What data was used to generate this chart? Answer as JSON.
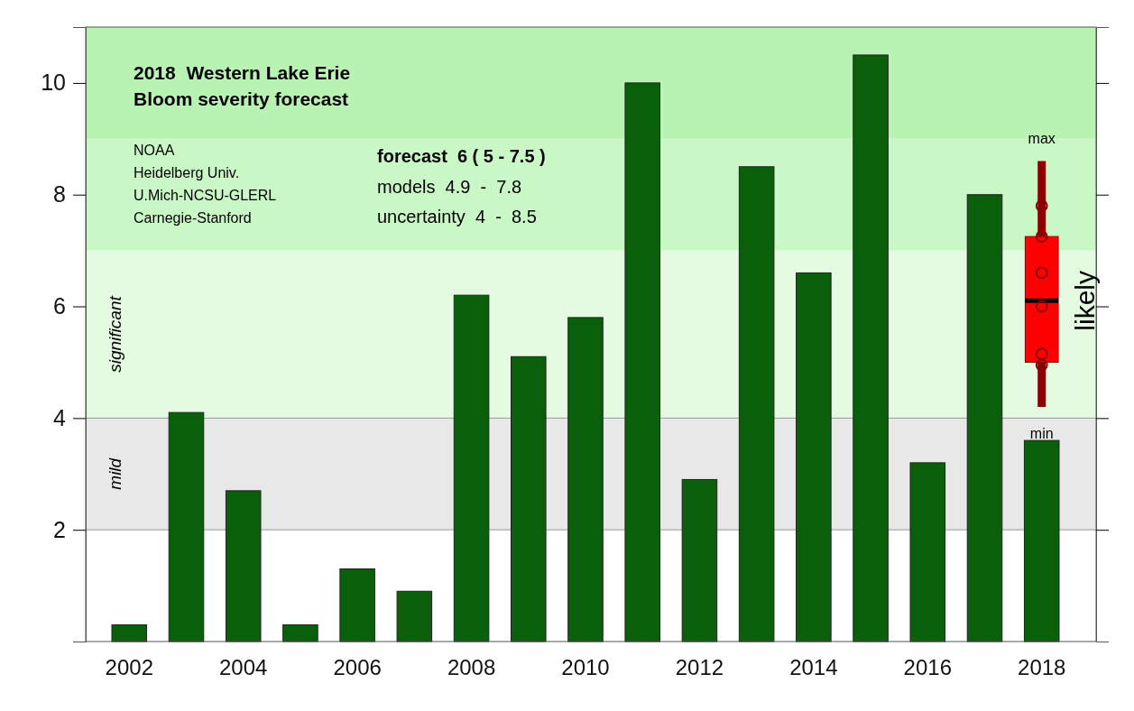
{
  "chart_data": {
    "type": "bar",
    "title": "2018  Western Lake Erie\nBloom severity forecast",
    "categories": [
      "2002",
      null,
      "2004",
      null,
      "2006",
      null,
      "2008",
      null,
      "2010",
      null,
      "2012",
      null,
      "2014",
      null,
      "2016",
      null,
      "2018"
    ],
    "series": [
      {
        "color": "#0a5f0a",
        "values": [
          0.3,
          4.1,
          2.7,
          0.3,
          1.3,
          0.9,
          6.2,
          5.1,
          5.8,
          10.0,
          2.9,
          8.5,
          6.6,
          10.5,
          3.2,
          8.0,
          3.6
        ]
      },
      {
        "type": "box",
        "color": "#ff0000",
        "boxes": [
          null,
          null,
          null,
          null,
          null,
          null,
          null,
          null,
          null,
          null,
          null,
          null,
          null,
          null,
          null,
          null,
          {
            "low": 4.2,
            "q1": 5.0,
            "median": 6.1,
            "q3": 7.25,
            "high": 8.6
          }
        ]
      },
      {
        "type": "scatter",
        "color": "#8b0000",
        "marker": "circle",
        "values": [
          null,
          null,
          null,
          null,
          null,
          null,
          null,
          null,
          null,
          null,
          null,
          null,
          null,
          null,
          null,
          null,
          7.8
        ]
      },
      {
        "type": "scatter",
        "color": "#8b0000",
        "marker": "circle",
        "values": [
          null,
          null,
          null,
          null,
          null,
          null,
          null,
          null,
          null,
          null,
          null,
          null,
          null,
          null,
          null,
          null,
          7.25
        ]
      },
      {
        "type": "scatter",
        "color": "#8b0000",
        "marker": "circle",
        "values": [
          null,
          null,
          null,
          null,
          null,
          null,
          null,
          null,
          null,
          null,
          null,
          null,
          null,
          null,
          null,
          null,
          6.6
        ]
      },
      {
        "type": "scatter",
        "color": "#8b0000",
        "marker": "circle",
        "values": [
          null,
          null,
          null,
          null,
          null,
          null,
          null,
          null,
          null,
          null,
          null,
          null,
          null,
          null,
          null,
          null,
          6.0
        ]
      },
      {
        "type": "scatter",
        "color": "#8b0000",
        "marker": "circle",
        "values": [
          null,
          null,
          null,
          null,
          null,
          null,
          null,
          null,
          null,
          null,
          null,
          null,
          null,
          null,
          null,
          null,
          5.15
        ]
      },
      {
        "type": "scatter",
        "color": "#8b0000",
        "marker": "circle",
        "values": [
          null,
          null,
          null,
          null,
          null,
          null,
          null,
          null,
          null,
          null,
          null,
          null,
          null,
          null,
          null,
          null,
          4.95
        ]
      }
    ],
    "ylim": [
      0,
      11
    ],
    "yticks": [
      2,
      4,
      6,
      8,
      10
    ],
    "bands": [
      {
        "axis": "y",
        "from": 2,
        "to": 4,
        "label": "mild",
        "color": "#e8e8e8"
      },
      {
        "axis": "y",
        "from": 4,
        "to": 7,
        "label": "significant",
        "color": "#e4fbe2"
      },
      {
        "axis": "y",
        "from": 7,
        "to": 9,
        "color": "#c9f7c5"
      },
      {
        "axis": "y",
        "from": 9,
        "to": 11,
        "color": "#b9f3b4"
      }
    ],
    "annotations": [
      "NOAA",
      "Heidelberg Univ.",
      "U.Mich-NCSU-GLERL",
      "Carnegie-Stanford",
      "forecast  6 ( 5 - 7.5 )",
      "models  4.9  -  7.8",
      "uncertainty  4  -  8.5",
      {
        "text": "max",
        "x": "2018",
        "y": 8.6
      },
      {
        "text": "min",
        "x": "2018",
        "y": 3.6
      },
      {
        "text": "likely",
        "x": "2018",
        "y": 6.1
      }
    ]
  }
}
